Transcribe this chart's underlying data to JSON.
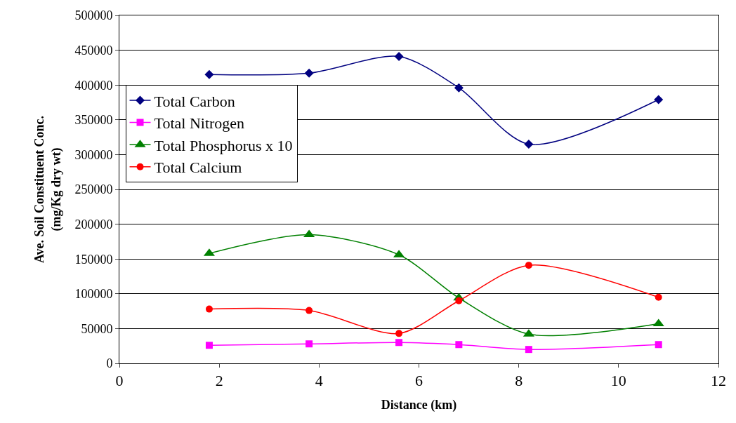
{
  "chart_data": {
    "type": "line",
    "xlabel": "Distance (km)",
    "ylabel": "Ave. Soil Constituent Conc.\n(mg/Kg dry wt)",
    "x": [
      1.8,
      3.8,
      5.6,
      6.8,
      8.2,
      10.8
    ],
    "series": [
      {
        "name": "Total Carbon",
        "color": "#000080",
        "marker": "diamond",
        "values": [
          415000,
          417000,
          441000,
          396000,
          315000,
          379000
        ]
      },
      {
        "name": "Total Nitrogen",
        "color": "#ff00ff",
        "marker": "square",
        "values": [
          26000,
          28000,
          30000,
          27000,
          20000,
          27000
        ]
      },
      {
        "name": "Total Phosphorus x 10",
        "color": "#008000",
        "marker": "triangle",
        "values": [
          158000,
          185000,
          156000,
          94000,
          42000,
          57000
        ]
      },
      {
        "name": "Total Calcium",
        "color": "#ff0000",
        "marker": "circle",
        "values": [
          78000,
          76000,
          43000,
          90000,
          141000,
          95000
        ]
      }
    ],
    "xlim": [
      0,
      12
    ],
    "xticks": [
      0,
      2,
      4,
      6,
      8,
      10,
      12
    ],
    "ylim": [
      0,
      500000
    ],
    "yticks": [
      0,
      50000,
      100000,
      150000,
      200000,
      250000,
      300000,
      350000,
      400000,
      450000,
      500000
    ],
    "grid": "y",
    "legend": "top left",
    "line_style": "solid"
  }
}
